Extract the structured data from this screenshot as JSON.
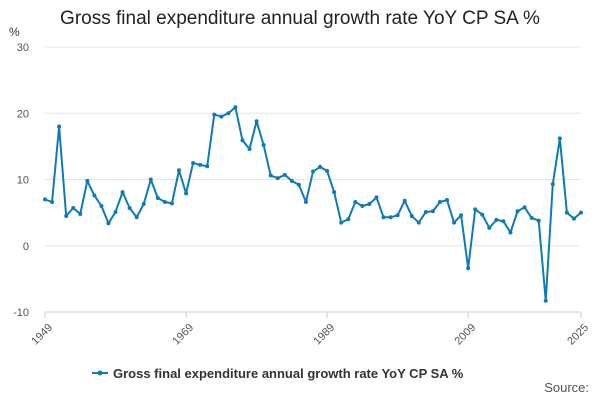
{
  "chart_data": {
    "type": "line",
    "title": "Gross final expenditure annual growth rate YoY CP SA %",
    "ylabel": "%",
    "xlabel": "",
    "ylim": [
      -10,
      30
    ],
    "yticks": [
      -10,
      0,
      10,
      20,
      30
    ],
    "xlim": [
      1949,
      2025
    ],
    "xticks": [
      1949,
      1969,
      1989,
      2009,
      2025
    ],
    "grid": true,
    "legend": "bottom",
    "color": "#0f7bb5",
    "series": [
      {
        "name": "Gross final expenditure annual growth rate YoY CP SA %",
        "x": [
          1949,
          1950,
          1951,
          1952,
          1953,
          1954,
          1955,
          1956,
          1957,
          1958,
          1959,
          1960,
          1961,
          1962,
          1963,
          1964,
          1965,
          1966,
          1967,
          1968,
          1969,
          1970,
          1971,
          1972,
          1973,
          1974,
          1975,
          1976,
          1977,
          1978,
          1979,
          1980,
          1981,
          1982,
          1983,
          1984,
          1985,
          1986,
          1987,
          1988,
          1989,
          1990,
          1991,
          1992,
          1993,
          1994,
          1995,
          1996,
          1997,
          1998,
          1999,
          2000,
          2001,
          2002,
          2003,
          2004,
          2005,
          2006,
          2007,
          2008,
          2009,
          2010,
          2011,
          2012,
          2013,
          2014,
          2015,
          2016,
          2017,
          2018,
          2019,
          2020,
          2021,
          2022,
          2023,
          2024,
          2025
        ],
        "values": [
          7.0,
          6.6,
          18.0,
          4.5,
          5.7,
          4.8,
          9.8,
          7.6,
          6.0,
          3.4,
          5.1,
          8.1,
          5.7,
          4.3,
          6.3,
          10.0,
          7.2,
          6.6,
          6.4,
          11.4,
          7.9,
          12.5,
          12.2,
          12.0,
          19.8,
          19.5,
          20.0,
          20.9,
          15.9,
          14.6,
          18.8,
          15.2,
          10.6,
          10.2,
          10.7,
          9.8,
          9.2,
          6.6,
          11.2,
          11.9,
          11.3,
          8.1,
          3.5,
          4.0,
          6.6,
          6.0,
          6.3,
          7.3,
          4.3,
          4.3,
          4.6,
          6.8,
          4.5,
          3.5,
          5.1,
          5.2,
          6.6,
          6.9,
          3.5,
          4.6,
          -3.4,
          5.5,
          4.7,
          2.7,
          3.9,
          3.7,
          2.0,
          5.2,
          5.8,
          4.2,
          3.8,
          -8.3,
          9.3,
          16.2,
          5.0,
          4.1,
          5.0
        ]
      }
    ]
  },
  "legend": {
    "label": "Gross final expenditure annual growth rate YoY CP SA %"
  },
  "footer": {
    "source_label": "Source:"
  }
}
